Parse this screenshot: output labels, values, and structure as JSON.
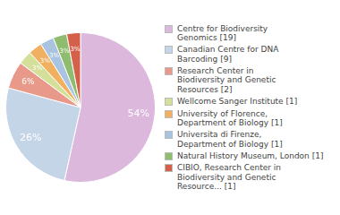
{
  "chart_data": {
    "type": "pie",
    "categories": [
      "Centre for Biodiversity\nGenomics [19]",
      "Canadian Centre for DNA\nBarcoding [9]",
      "Research Center in\nBiodiversity and Genetic\nResources [2]",
      "Wellcome Sanger Institute [1]",
      "University of Florence,\nDepartment of Biology [1]",
      "Universita di Firenze,\nDepartment of Biology [1]",
      "Natural History Museum, London [1]",
      "CIBIO, Research Center in\nBiodiversity and Genetic\nResource... [1]"
    ],
    "values": [
      54,
      26,
      6,
      3,
      3,
      3,
      3,
      3
    ],
    "value_labels": [
      "54%",
      "26%",
      "6%",
      "3%",
      "3%",
      "3%",
      "3%",
      "3%"
    ],
    "colors": [
      "#ddb8dd",
      "#c5d5e8",
      "#e8998a",
      "#d4e09a",
      "#f0b060",
      "#a8c4e0",
      "#8fbc6f",
      "#d4604a"
    ],
    "data_labels": true,
    "legend": "right"
  }
}
